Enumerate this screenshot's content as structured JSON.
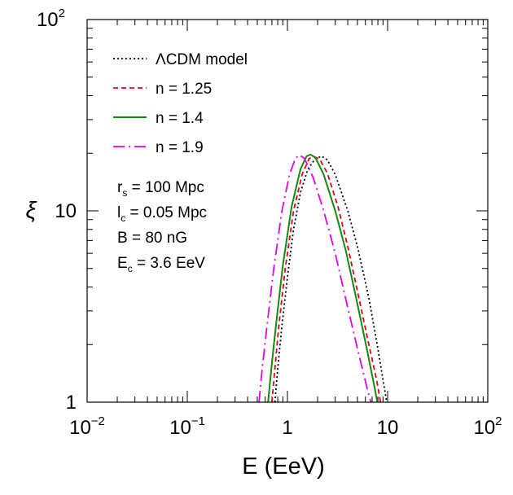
{
  "chart_data": {
    "type": "line",
    "title": "",
    "xlabel": "E (EeV)",
    "ylabel": "ξ",
    "xscale": "log",
    "yscale": "log",
    "xlim": [
      0.01,
      100
    ],
    "ylim": [
      1,
      100
    ],
    "x_ticks": [
      {
        "base": "10",
        "exp": "−2"
      },
      {
        "base": "10",
        "exp": "−1"
      },
      {
        "base": "1",
        "exp": ""
      },
      {
        "base": "10",
        "exp": ""
      },
      {
        "base": "10",
        "exp": "2"
      }
    ],
    "y_ticks": [
      {
        "base": "1",
        "exp": ""
      },
      {
        "base": "10",
        "exp": ""
      },
      {
        "base": "10",
        "exp": "2"
      }
    ],
    "legend_position": "top-left",
    "series": [
      {
        "name": "ΛCDM model",
        "color": "#000000",
        "dash": "dotted",
        "points": [
          [
            0.75,
            1.0
          ],
          [
            0.8,
            1.5
          ],
          [
            0.88,
            2.5
          ],
          [
            1.0,
            4.5
          ],
          [
            1.15,
            8.0
          ],
          [
            1.35,
            12.5
          ],
          [
            1.6,
            16.5
          ],
          [
            1.9,
            18.8
          ],
          [
            2.2,
            19.3
          ],
          [
            2.5,
            18.5
          ],
          [
            3.0,
            15.5
          ],
          [
            4.0,
            10.0
          ],
          [
            5.0,
            6.5
          ],
          [
            6.5,
            3.5
          ],
          [
            8.0,
            1.9
          ],
          [
            9.5,
            1.1
          ],
          [
            9.8,
            1.0
          ]
        ]
      },
      {
        "name": "n = 1.25",
        "color": "#e4001b",
        "dash": "dashed",
        "points": [
          [
            0.7,
            1.0
          ],
          [
            0.75,
            1.5
          ],
          [
            0.82,
            2.5
          ],
          [
            0.95,
            5.0
          ],
          [
            1.15,
            10.0
          ],
          [
            1.4,
            15.5
          ],
          [
            1.65,
            18.8
          ],
          [
            1.85,
            19.2
          ],
          [
            2.1,
            18.6
          ],
          [
            2.5,
            15.8
          ],
          [
            3.2,
            10.5
          ],
          [
            4.0,
            6.5
          ],
          [
            5.0,
            3.8
          ],
          [
            6.5,
            2.0
          ],
          [
            7.8,
            1.3
          ],
          [
            8.5,
            1.0
          ]
        ]
      },
      {
        "name": "n = 1.4",
        "color": "#118b11",
        "dash": "solid",
        "points": [
          [
            0.64,
            1.0
          ],
          [
            0.7,
            1.6
          ],
          [
            0.78,
            2.7
          ],
          [
            0.9,
            5.2
          ],
          [
            1.1,
            10.5
          ],
          [
            1.35,
            16.5
          ],
          [
            1.55,
            19.3
          ],
          [
            1.7,
            19.7
          ],
          [
            1.9,
            19.0
          ],
          [
            2.3,
            15.5
          ],
          [
            3.0,
            10.0
          ],
          [
            3.8,
            6.3
          ],
          [
            4.8,
            3.6
          ],
          [
            6.2,
            1.9
          ],
          [
            7.4,
            1.2
          ],
          [
            7.9,
            1.0
          ]
        ]
      },
      {
        "name": "n = 1.9",
        "color": "#e600e6",
        "dash": "dashdot",
        "points": [
          [
            0.52,
            1.0
          ],
          [
            0.56,
            1.5
          ],
          [
            0.63,
            2.6
          ],
          [
            0.73,
            5.0
          ],
          [
            0.88,
            10.0
          ],
          [
            1.05,
            15.5
          ],
          [
            1.2,
            18.8
          ],
          [
            1.32,
            19.6
          ],
          [
            1.48,
            18.8
          ],
          [
            1.8,
            15.0
          ],
          [
            2.3,
            10.0
          ],
          [
            3.0,
            6.0
          ],
          [
            3.8,
            3.5
          ],
          [
            5.0,
            1.9
          ],
          [
            6.2,
            1.2
          ],
          [
            6.8,
            1.0
          ]
        ]
      }
    ],
    "annotations": [
      {
        "main": "r",
        "sub": "s",
        "rest": " = 100 Mpc"
      },
      {
        "main": "l",
        "sub": "c",
        "rest": " = 0.05 Mpc"
      },
      {
        "main": "B = 80 nG",
        "sub": "",
        "rest": ""
      },
      {
        "main": "E",
        "sub": "c",
        "rest": " = 3.6 EeV"
      }
    ]
  }
}
